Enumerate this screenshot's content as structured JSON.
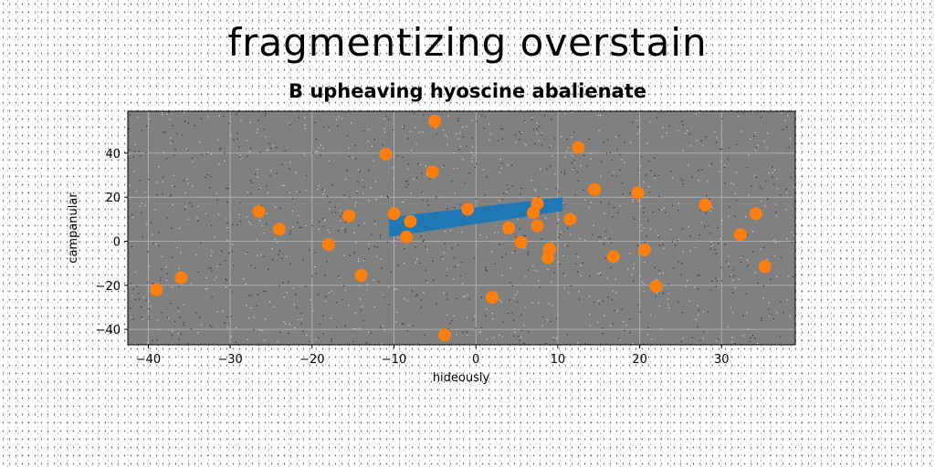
{
  "figure": {
    "suptitle": "fragmentizing overstain"
  },
  "chart_data": {
    "type": "scatter",
    "title": "B upheaving hyoscine abalienate",
    "xlabel": "hideously",
    "ylabel": "campanular",
    "xlim": [
      -42.5,
      39
    ],
    "ylim": [
      -47,
      59
    ],
    "xticks": [
      -40,
      -30,
      -20,
      -10,
      0,
      10,
      20,
      30
    ],
    "yticks": [
      -40,
      -20,
      0,
      20,
      40
    ],
    "xtick_labels": [
      "−40",
      "−30",
      "−20",
      "−10",
      "0",
      "10",
      "20",
      "30"
    ],
    "ytick_labels": [
      "−40",
      "−20",
      "0",
      "20",
      "40"
    ],
    "grid": true,
    "background": "#808080",
    "series": [
      {
        "kind": "band",
        "color": "#1f77b4",
        "x": [
          -10.5,
          10.5
        ],
        "y_lower": [
          2.5,
          14.0
        ],
        "y_upper": [
          10.5,
          19.5
        ]
      },
      {
        "kind": "scatter",
        "color": "#ff7f0e",
        "x": [
          -5,
          -11,
          12.5,
          -5.3,
          14.5,
          19.8,
          28,
          34.2,
          -26.5,
          -24,
          -15.5,
          -10,
          -8,
          -1,
          7.5,
          7,
          4,
          7.5,
          11.5,
          -8.5,
          -18,
          5.5,
          9,
          8.8,
          16.8,
          20.6,
          32.3,
          35.3,
          -36,
          -39,
          -14,
          2,
          22,
          -3.8
        ],
        "y": [
          54.5,
          39.5,
          42.5,
          31.5,
          23.5,
          22,
          16.5,
          12.5,
          13.5,
          5.5,
          11.5,
          12.5,
          9,
          14.5,
          17,
          13,
          6,
          7,
          10,
          2,
          -1.5,
          -0.5,
          -3.5,
          -7.5,
          -7,
          -4,
          3,
          -11.5,
          -16.5,
          -22,
          -15.5,
          -25.5,
          -20.5,
          -42.5
        ]
      }
    ]
  }
}
